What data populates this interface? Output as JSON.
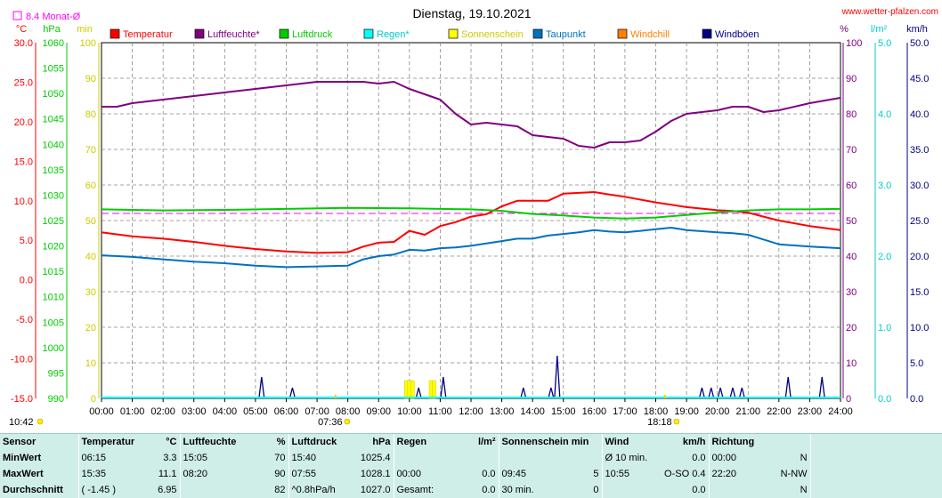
{
  "chart_data": {
    "type": "line",
    "title": "Dienstag, 19.10.2021",
    "source": "www.wetter-pfalzen.com",
    "monthly_avg_label": "8.4 Monat-Ø",
    "x_ticks": [
      "00:00",
      "01:00",
      "02:00",
      "03:00",
      "04:00",
      "05:00",
      "06:00",
      "07:00",
      "08:00",
      "09:00",
      "10:00",
      "11:00",
      "12:00",
      "13:00",
      "14:00",
      "15:00",
      "16:00",
      "17:00",
      "18:00",
      "19:00",
      "20:00",
      "21:00",
      "22:00",
      "23:00",
      "24:00"
    ],
    "sunrise": "07:36",
    "sunset": "18:18",
    "corner_time": "10:42",
    "axes": {
      "temp": {
        "unit": "°C",
        "ylim": [
          -15,
          30
        ],
        "ticks": [
          "30.0",
          "25.0",
          "20.0",
          "15.0",
          "10.0",
          "5.0",
          "0.0",
          "-5.0",
          "-10.0",
          "-15.0"
        ]
      },
      "pressure": {
        "unit": "hPa",
        "ylim": [
          990,
          1060
        ],
        "ticks": [
          "1060",
          "1055",
          "1050",
          "1045",
          "1040",
          "1035",
          "1030",
          "1025",
          "1020",
          "1015",
          "1010",
          "1005",
          "1000",
          "995",
          "990"
        ]
      },
      "minutes": {
        "unit": "min",
        "ylim": [
          0,
          100
        ],
        "ticks": [
          "100",
          "90",
          "80",
          "70",
          "60",
          "50",
          "40",
          "30",
          "20",
          "10",
          "0"
        ]
      },
      "humidity": {
        "unit": "%",
        "ylim": [
          0,
          100
        ],
        "ticks": [
          "100",
          "90",
          "80",
          "70",
          "60",
          "50",
          "40",
          "30",
          "20",
          "10",
          "0"
        ]
      },
      "rain": {
        "unit": "l/m²",
        "ylim": [
          0,
          5
        ],
        "ticks": [
          "5.0",
          "4.0",
          "3.0",
          "2.0",
          "1.0",
          "0.0"
        ]
      },
      "wind": {
        "unit": "km/h",
        "ylim": [
          0,
          50
        ],
        "ticks": [
          "50.0",
          "45.0",
          "40.0",
          "35.0",
          "30.0",
          "25.0",
          "20.0",
          "15.0",
          "10.0",
          "5.0",
          "0.0"
        ]
      }
    },
    "legend": [
      {
        "name": "Temperatur",
        "color": "#ff0000"
      },
      {
        "name": "Luftfeuchte*",
        "color": "#800080"
      },
      {
        "name": "Luftdruck",
        "color": "#00cc00"
      },
      {
        "name": "Regen*",
        "color": "#00ffff"
      },
      {
        "name": "Sonnenschein",
        "color": "#ffff00"
      },
      {
        "name": "Taupunkt",
        "color": "#0070c0"
      },
      {
        "name": "Windchill",
        "color": "#ff8000"
      },
      {
        "name": "Windböen",
        "color": "#000080"
      }
    ],
    "monthly_avg_temp": 8.4,
    "series": [
      {
        "name": "Temperatur",
        "axis": "temp",
        "color": "#ff0000",
        "x": [
          0,
          1,
          2,
          3,
          4,
          5,
          6,
          7,
          8,
          8.5,
          9,
          9.5,
          10,
          10.5,
          11,
          11.5,
          12,
          12.5,
          13,
          13.5,
          14,
          14.5,
          15,
          15.5,
          16,
          16.5,
          17,
          18,
          19,
          20,
          20.5,
          21,
          21.5,
          22,
          23,
          24
        ],
        "y": [
          6,
          5.5,
          5.2,
          4.8,
          4.3,
          3.9,
          3.6,
          3.4,
          3.5,
          4.2,
          4.7,
          4.8,
          6.2,
          5.7,
          6.8,
          7.3,
          8,
          8.3,
          9.3,
          10,
          10,
          10,
          10.9,
          11,
          11.1,
          10.8,
          10.5,
          9.8,
          9.2,
          8.8,
          8.7,
          8.5,
          8,
          7.5,
          6.8,
          6.3
        ]
      },
      {
        "name": "Luftfeuchte*",
        "axis": "humidity",
        "color": "#800080",
        "x": [
          0,
          0.5,
          1,
          2,
          3,
          4,
          5,
          6,
          7,
          8,
          8.5,
          9,
          9.5,
          10,
          11,
          11.5,
          12,
          12.5,
          13,
          13.5,
          14,
          14.5,
          15,
          15.5,
          16,
          16.5,
          17,
          17.5,
          18,
          18.5,
          19,
          20,
          20.5,
          21,
          21.5,
          22,
          23,
          24
        ],
        "y": [
          82,
          82,
          83,
          84,
          85,
          86,
          87,
          88,
          89,
          89,
          89,
          88.5,
          89,
          87,
          84,
          80,
          77,
          77.5,
          77,
          76.5,
          74,
          73.5,
          73,
          71,
          70.5,
          72,
          72,
          72.5,
          75,
          78,
          80,
          81,
          82,
          82,
          80.5,
          81,
          83,
          84.5
        ]
      },
      {
        "name": "Luftdruck",
        "axis": "pressure",
        "color": "#00cc00",
        "x": [
          0,
          2,
          4,
          6,
          8,
          10,
          11,
          12,
          13,
          14,
          15,
          16,
          17,
          18,
          19,
          20,
          21,
          22,
          23,
          24
        ],
        "y": [
          1027.2,
          1027,
          1027.1,
          1027.3,
          1027.5,
          1027.4,
          1027.3,
          1027.2,
          1026.9,
          1026.3,
          1026,
          1025.6,
          1025.4,
          1025.6,
          1026.1,
          1026.6,
          1027,
          1027.2,
          1027.2,
          1027.3
        ]
      },
      {
        "name": "Taupunkt",
        "axis": "temp",
        "color": "#0070c0",
        "x": [
          0,
          1,
          2,
          3,
          4,
          5,
          6,
          7,
          8,
          8.5,
          9,
          9.5,
          10,
          10.5,
          11,
          11.5,
          12,
          12.5,
          13,
          13.5,
          14,
          14.5,
          15,
          15.5,
          16,
          16.5,
          17,
          17.5,
          18,
          18.5,
          19,
          20,
          20.5,
          21,
          21.5,
          22,
          23,
          24
        ],
        "y": [
          3.1,
          2.9,
          2.6,
          2.3,
          2.1,
          1.8,
          1.6,
          1.7,
          1.8,
          2.6,
          3,
          3.2,
          3.8,
          3.7,
          4,
          4.1,
          4.3,
          4.6,
          4.9,
          5.2,
          5.2,
          5.6,
          5.8,
          6,
          6.3,
          6.1,
          6,
          6.2,
          6.4,
          6.6,
          6.3,
          6,
          5.9,
          5.7,
          5.1,
          4.5,
          4.2,
          4.0
        ]
      },
      {
        "name": "Windböen",
        "axis": "wind",
        "color": "#000080",
        "type": "spikes",
        "x": [
          5.2,
          6.2,
          10.3,
          11.1,
          13.7,
          14.6,
          14.8,
          19.5,
          19.8,
          20.1,
          20.5,
          20.8,
          22.3,
          23.4
        ],
        "y": [
          3,
          1.5,
          1.5,
          3,
          1.5,
          1.5,
          6,
          1.5,
          1.5,
          1.5,
          1.5,
          1.5,
          3,
          3
        ]
      },
      {
        "name": "Sonnenschein",
        "axis": "minutes",
        "color": "#ffff00",
        "type": "bars",
        "x": [
          9.9,
          10.0,
          10.1,
          10.7,
          10.8
        ],
        "y": [
          5,
          5,
          5,
          5,
          5
        ]
      },
      {
        "name": "Regen*",
        "axis": "rain",
        "color": "#00ffff",
        "y_all": 0
      }
    ]
  },
  "stats": {
    "headers": {
      "sensor": "Sensor",
      "temp": "Temperatur",
      "temp_unit": "°C",
      "hum": "Luftfeuchte",
      "hum_unit": "%",
      "press": "Luftdruck",
      "press_unit": "hPa",
      "rain": "Regen",
      "rain_unit": "l/m²",
      "sun": "Sonnenschein min",
      "wind": "Wind",
      "wind_unit": "km/h",
      "dir": "Richtung"
    },
    "rows": [
      {
        "label": "MinWert",
        "temp_time": "06:15",
        "temp_val": "3.3",
        "hum_time": "15:05",
        "hum_val": "70",
        "press_time": "15:40",
        "press_val": "1025.4",
        "rain_time": "",
        "rain_val": "",
        "sun_time": "",
        "sun_val": "",
        "wind_time": "Ø 10 min.",
        "wind_val": "0.0",
        "dir_time": "00:00",
        "dir_val": "N"
      },
      {
        "label": "MaxWert",
        "temp_time": "15:35",
        "temp_val": "11.1",
        "hum_time": "08:20",
        "hum_val": "90",
        "press_time": "07:55",
        "press_val": "1028.1",
        "rain_time": "00:00",
        "rain_val": "0.0",
        "sun_time": "09:45",
        "sun_val": "5",
        "wind_time": "10:55",
        "wind_val": "O-SO 0.4",
        "dir_time": "22:20",
        "dir_val": "N-NW"
      },
      {
        "label": "Durchschnitt",
        "temp_time": "( -1.45 )",
        "temp_val": "6.95",
        "hum_time": "",
        "hum_val": "82",
        "press_time": "^0.8hPa/h",
        "press_val": "1027.0",
        "rain_time": "Gesamt:",
        "rain_val": "0.0",
        "sun_time": "30 min.",
        "sun_val": "0",
        "wind_time": "",
        "wind_val": "0.0",
        "dir_time": "",
        "dir_val": "N"
      }
    ]
  }
}
